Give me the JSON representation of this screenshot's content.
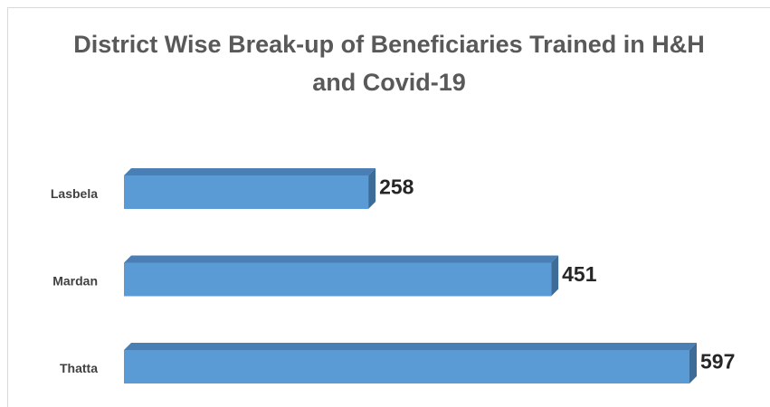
{
  "chart_data": {
    "type": "bar",
    "orientation": "horizontal",
    "three_d": true,
    "title": "District Wise Break-up of Beneficiaries Trained in H&H and Covid-19",
    "categories": [
      "Lasbela",
      "Mardan",
      "Thatta"
    ],
    "values": [
      258,
      451,
      597
    ],
    "color": "#5b9bd5"
  }
}
